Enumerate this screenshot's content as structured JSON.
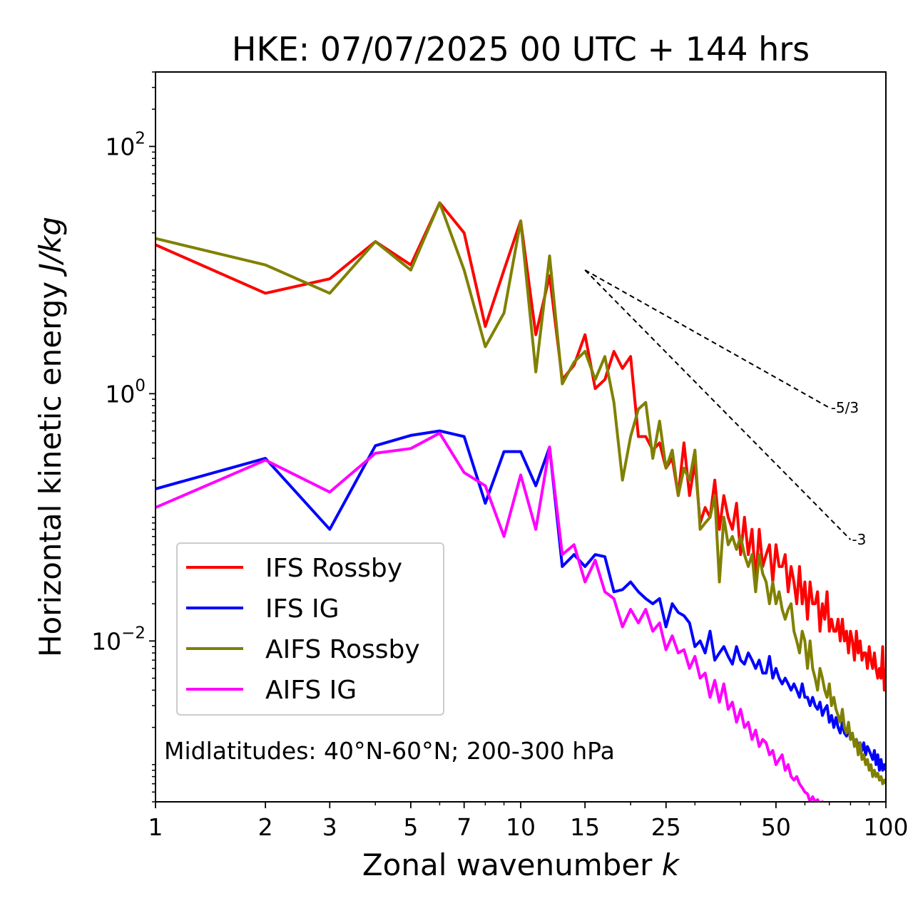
{
  "chart_data": {
    "type": "line",
    "title": "HKE: 07/07/2025 00 UTC + 144 hrs",
    "xlabel": "Zonal wavenumber",
    "xlabel_italic": "k",
    "ylabel": "Horizontal kinetic energy",
    "ylabel_italic": "J/kg",
    "xscale": "log",
    "yscale": "log",
    "xlim": [
      1,
      100
    ],
    "ylim": [
      0.0005,
      400
    ],
    "x_ticks": [
      1,
      2,
      3,
      5,
      7,
      10,
      15,
      25,
      50,
      100
    ],
    "x_tick_labels": [
      "1",
      "2",
      "3",
      "5",
      "7",
      "10",
      "15",
      "25",
      "50",
      "100"
    ],
    "y_ticks": [
      {
        "value": 100,
        "base": "10",
        "exp": "2"
      },
      {
        "value": 1,
        "base": "10",
        "exp": "0"
      },
      {
        "value": 0.01,
        "base": "10",
        "exp": "−2"
      }
    ],
    "grid": false,
    "legend_position": "lower-left",
    "annotation": "Midlatitudes: 40°N-60°N; 200-300 hPa",
    "series": [
      {
        "name": "IFS Rossby",
        "color": "#ff0000",
        "x": [
          1,
          2,
          3,
          4,
          5,
          6,
          7,
          8,
          9,
          10,
          11,
          12,
          13,
          14,
          15,
          16,
          17,
          18,
          19,
          20,
          21,
          22,
          23,
          24,
          25,
          26,
          27,
          28,
          29,
          30,
          31,
          32,
          33,
          34,
          35,
          36,
          37,
          38,
          39,
          40,
          41,
          42,
          43,
          44,
          45,
          46,
          47,
          48,
          49,
          50,
          51,
          52,
          53,
          54,
          55,
          56,
          57,
          58,
          59,
          60,
          61,
          62,
          63,
          64,
          65,
          66,
          67,
          68,
          69,
          70,
          71,
          72,
          73,
          74,
          75,
          76,
          77,
          78,
          79,
          80,
          81,
          82,
          83,
          84,
          85,
          86,
          87,
          88,
          89,
          90,
          91,
          92,
          93,
          94,
          95,
          96,
          97,
          98,
          99,
          100
        ],
        "y": [
          16,
          6.5,
          8.5,
          17,
          11,
          35,
          20,
          3.5,
          10,
          25,
          3,
          9,
          1.3,
          1.7,
          3,
          1.1,
          1.3,
          2.2,
          1.6,
          2,
          0.45,
          0.45,
          0.35,
          0.4,
          0.25,
          0.3,
          0.15,
          0.4,
          0.15,
          0.28,
          0.09,
          0.12,
          0.1,
          0.2,
          0.08,
          0.15,
          0.1,
          0.08,
          0.13,
          0.05,
          0.1,
          0.05,
          0.08,
          0.03,
          0.08,
          0.04,
          0.05,
          0.06,
          0.03,
          0.06,
          0.04,
          0.04,
          0.05,
          0.025,
          0.04,
          0.03,
          0.02,
          0.04,
          0.02,
          0.03,
          0.015,
          0.03,
          0.02,
          0.02,
          0.025,
          0.012,
          0.02,
          0.015,
          0.025,
          0.012,
          0.015,
          0.012,
          0.012,
          0.015,
          0.01,
          0.015,
          0.01,
          0.012,
          0.008,
          0.012,
          0.01,
          0.007,
          0.012,
          0.008,
          0.01,
          0.007,
          0.008,
          0.008,
          0.006,
          0.009,
          0.007,
          0.006,
          0.008,
          0.006,
          0.005,
          0.006,
          0.005,
          0.009,
          0.004,
          0.006
        ]
      },
      {
        "name": "IFS IG",
        "color": "#0000ff",
        "x": [
          1,
          2,
          3,
          4,
          5,
          6,
          7,
          8,
          9,
          10,
          11,
          12,
          13,
          14,
          15,
          16,
          17,
          18,
          19,
          20,
          21,
          22,
          23,
          24,
          25,
          26,
          27,
          28,
          29,
          30,
          31,
          32,
          33,
          34,
          35,
          36,
          37,
          38,
          39,
          40,
          41,
          42,
          43,
          44,
          45,
          46,
          47,
          48,
          49,
          50,
          51,
          52,
          53,
          54,
          55,
          56,
          57,
          58,
          59,
          60,
          61,
          62,
          63,
          64,
          65,
          66,
          67,
          68,
          69,
          70,
          71,
          72,
          73,
          74,
          75,
          76,
          77,
          78,
          79,
          80,
          81,
          82,
          83,
          84,
          85,
          86,
          87,
          88,
          89,
          90,
          91,
          92,
          93,
          94,
          95,
          96,
          97,
          98,
          99,
          100
        ],
        "y": [
          0.17,
          0.3,
          0.08,
          0.38,
          0.46,
          0.5,
          0.45,
          0.13,
          0.34,
          0.34,
          0.18,
          0.37,
          0.04,
          0.05,
          0.04,
          0.05,
          0.048,
          0.025,
          0.026,
          0.03,
          0.025,
          0.022,
          0.02,
          0.022,
          0.013,
          0.02,
          0.017,
          0.016,
          0.014,
          0.009,
          0.01,
          0.008,
          0.012,
          0.007,
          0.008,
          0.009,
          0.0075,
          0.0065,
          0.009,
          0.007,
          0.0065,
          0.008,
          0.007,
          0.006,
          0.007,
          0.0055,
          0.0055,
          0.0075,
          0.005,
          0.006,
          0.005,
          0.0045,
          0.005,
          0.0045,
          0.004,
          0.0045,
          0.004,
          0.0035,
          0.0045,
          0.0035,
          0.0035,
          0.003,
          0.0035,
          0.003,
          0.0028,
          0.0032,
          0.0025,
          0.0028,
          0.003,
          0.0022,
          0.0025,
          0.002,
          0.0024,
          0.002,
          0.0018,
          0.0022,
          0.0018,
          0.0017,
          0.002,
          0.0016,
          0.0017,
          0.0015,
          0.0016,
          0.0014,
          0.0015,
          0.0013,
          0.0015,
          0.0012,
          0.0014,
          0.0013,
          0.0012,
          0.0011,
          0.0013,
          0.001,
          0.0012,
          0.0009,
          0.0011,
          0.0009,
          0.001,
          0.0009
        ]
      },
      {
        "name": "AIFS Rossby",
        "color": "#808000",
        "x": [
          1,
          2,
          3,
          4,
          5,
          6,
          7,
          8,
          9,
          10,
          11,
          12,
          13,
          14,
          15,
          16,
          17,
          18,
          19,
          20,
          21,
          22,
          23,
          24,
          25,
          26,
          27,
          28,
          29,
          30,
          31,
          32,
          33,
          34,
          35,
          36,
          37,
          38,
          39,
          40,
          41,
          42,
          43,
          44,
          45,
          46,
          47,
          48,
          49,
          50,
          51,
          52,
          53,
          54,
          55,
          56,
          57,
          58,
          59,
          60,
          61,
          62,
          63,
          64,
          65,
          66,
          67,
          68,
          69,
          70,
          71,
          72,
          73,
          74,
          75,
          76,
          77,
          78,
          79,
          80,
          81,
          82,
          83,
          84,
          85,
          86,
          87,
          88,
          89,
          90,
          91,
          92,
          93,
          94,
          95,
          96,
          97,
          98,
          99,
          100
        ],
        "y": [
          18,
          11,
          6.5,
          17,
          10,
          35,
          10,
          2.4,
          4.5,
          25,
          1.5,
          13,
          1.2,
          1.8,
          2.2,
          1.3,
          2,
          0.85,
          0.2,
          0.45,
          0.75,
          0.85,
          0.3,
          0.6,
          0.25,
          0.35,
          0.15,
          0.25,
          0.2,
          0.35,
          0.08,
          0.09,
          0.1,
          0.15,
          0.03,
          0.1,
          0.06,
          0.07,
          0.055,
          0.07,
          0.05,
          0.04,
          0.05,
          0.025,
          0.05,
          0.035,
          0.03,
          0.02,
          0.03,
          0.02,
          0.025,
          0.018,
          0.015,
          0.018,
          0.02,
          0.012,
          0.01,
          0.008,
          0.012,
          0.01,
          0.006,
          0.01,
          0.006,
          0.005,
          0.004,
          0.006,
          0.005,
          0.004,
          0.0035,
          0.0045,
          0.003,
          0.0035,
          0.0028,
          0.0025,
          0.0022,
          0.0028,
          0.002,
          0.0018,
          0.0022,
          0.0016,
          0.0018,
          0.0014,
          0.0016,
          0.0012,
          0.0015,
          0.0011,
          0.0012,
          0.001,
          0.0011,
          0.0009,
          0.001,
          0.0008,
          0.0009,
          0.0008,
          0.00085,
          0.00075,
          0.0008,
          0.0007,
          0.00075,
          0.0007
        ]
      },
      {
        "name": "AIFS IG",
        "color": "#ff00ff",
        "x": [
          1,
          2,
          3,
          4,
          5,
          6,
          7,
          8,
          9,
          10,
          11,
          12,
          13,
          14,
          15,
          16,
          17,
          18,
          19,
          20,
          21,
          22,
          23,
          24,
          25,
          26,
          27,
          28,
          29,
          30,
          31,
          32,
          33,
          34,
          35,
          36,
          37,
          38,
          39,
          40,
          41,
          42,
          43,
          44,
          45,
          46,
          47,
          48,
          49,
          50,
          51,
          52,
          53,
          54,
          55,
          56,
          57,
          58,
          59,
          60,
          61,
          62,
          63,
          64,
          65,
          66,
          67,
          68,
          69
        ],
        "y": [
          0.12,
          0.29,
          0.16,
          0.33,
          0.36,
          0.48,
          0.23,
          0.18,
          0.07,
          0.22,
          0.08,
          0.37,
          0.05,
          0.06,
          0.03,
          0.045,
          0.025,
          0.022,
          0.013,
          0.018,
          0.014,
          0.018,
          0.012,
          0.014,
          0.0085,
          0.011,
          0.008,
          0.0085,
          0.006,
          0.0075,
          0.005,
          0.0055,
          0.0035,
          0.0048,
          0.0032,
          0.0045,
          0.0028,
          0.0032,
          0.0022,
          0.0028,
          0.002,
          0.0022,
          0.0016,
          0.0019,
          0.0014,
          0.0016,
          0.0015,
          0.0012,
          0.0013,
          0.001,
          0.0011,
          0.0012,
          0.0009,
          0.001,
          0.0008,
          0.00075,
          0.0008,
          0.0007,
          0.00065,
          0.0006,
          0.00058,
          0.0005,
          0.00055,
          0.0005,
          0.00052,
          0.00048,
          0.0005,
          0.00047,
          0.00046
        ]
      }
    ],
    "reference_slopes": [
      {
        "label": "-5/3",
        "x": [
          15,
          70
        ],
        "y": [
          10,
          0.77
        ]
      },
      {
        "label": "-3",
        "x": [
          15,
          80
        ],
        "y": [
          10,
          0.066
        ]
      }
    ]
  }
}
